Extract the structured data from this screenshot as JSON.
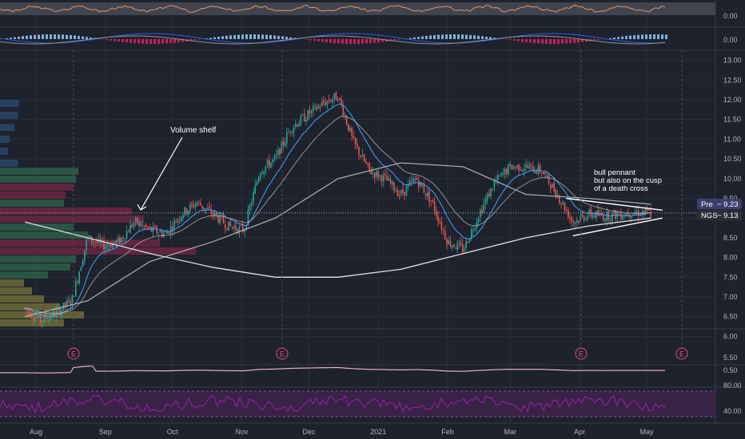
{
  "colors": {
    "background": "#1e222d",
    "grid": "#2a2e39",
    "axis_text": "#b2b5be",
    "up": "#26a69a",
    "down": "#ef5350",
    "sma_slow": "#e0e0e0",
    "sma_fast": "#d1d4dc",
    "ema": "#42a5f5",
    "annotation": "#ffffff",
    "pennant": "#ffffff",
    "earnings": "#e0527a",
    "pre_badge": "#3b3f6e",
    "ngs_badge": "#2a2e39",
    "rsi_line": "#9c27b0",
    "rsi_fill": "#3a2246",
    "bbw_line": "#f8bbd0",
    "osc_line": "#f4a06b",
    "osc_fill": "#4a4e58",
    "macd_line": "#2962ff",
    "signal_line": "#ff9800",
    "vp_up": "#2f6b4f",
    "vp_down": "#7a2746",
    "vp_mid": "#7c7a3c",
    "vp_blue": "#2b4f7a"
  },
  "annotations": {
    "volume_shelf": "Volume shelf",
    "pennant_line1": "bull pennant",
    "pennant_line2": "but also on the cusp",
    "pennant_line3": "of a death cross"
  },
  "earnings_marker": "E",
  "price_badges": [
    {
      "label": "Pre",
      "value": "9.23"
    },
    {
      "label": "NGS",
      "value": "9.13"
    }
  ],
  "chart_data": {
    "type": "candlestick",
    "symbol": "NGS",
    "x_ticks": [
      "Aug",
      "Sep",
      "Oct",
      "Nov",
      "Dec",
      "2021",
      "Feb",
      "Mar",
      "Apr",
      "May"
    ],
    "y_ticks": [
      "13.00",
      "12.50",
      "12.00",
      "11.50",
      "11.00",
      "10.50",
      "10.00",
      "9.50",
      "9.00",
      "8.50",
      "8.00",
      "7.50",
      "7.00",
      "6.50",
      "6.00"
    ],
    "ylim": [
      6.0,
      13.0
    ],
    "earnings_dates": [
      "Aug 24",
      "Nov 6",
      "Mar 26",
      "May 6"
    ],
    "price_path": [
      [
        "Jul 27",
        6.7
      ],
      [
        "Aug 3",
        6.4
      ],
      [
        "Aug 10",
        6.6
      ],
      [
        "Aug 17",
        6.9
      ],
      [
        "Aug 24",
        8.5
      ],
      [
        "Aug 31",
        8.3
      ],
      [
        "Sep 7",
        8.4
      ],
      [
        "Sep 14",
        8.9
      ],
      [
        "Sep 21",
        8.7
      ],
      [
        "Sep 28",
        8.6
      ],
      [
        "Oct 5",
        9.1
      ],
      [
        "Oct 12",
        9.4
      ],
      [
        "Oct 19",
        9.1
      ],
      [
        "Oct 26",
        8.8
      ],
      [
        "Nov 2",
        8.7
      ],
      [
        "Nov 9",
        10.2
      ],
      [
        "Nov 16",
        10.5
      ],
      [
        "Nov 23",
        11.3
      ],
      [
        "Nov 30",
        11.6
      ],
      [
        "Dec 7",
        11.9
      ],
      [
        "Dec 14",
        12.1
      ],
      [
        "Dec 21",
        10.9
      ],
      [
        "Dec 28",
        10.2
      ],
      [
        "Jan 4",
        10.0
      ],
      [
        "Jan 11",
        9.6
      ],
      [
        "Jan 18",
        10.0
      ],
      [
        "Jan 25",
        9.4
      ],
      [
        "Feb 1",
        8.4
      ],
      [
        "Feb 8",
        8.2
      ],
      [
        "Feb 15",
        9.1
      ],
      [
        "Feb 22",
        9.9
      ],
      [
        "Mar 1",
        10.3
      ],
      [
        "Mar 8",
        10.3
      ],
      [
        "Mar 15",
        10.2
      ],
      [
        "Mar 22",
        9.6
      ],
      [
        "Mar 29",
        8.9
      ],
      [
        "Apr 5",
        9.1
      ],
      [
        "Apr 12",
        9.05
      ],
      [
        "Apr 19",
        9.1
      ],
      [
        "Apr 26",
        9.15
      ],
      [
        "May 3",
        9.13
      ]
    ],
    "sma_slow_path": [
      [
        "Jul 27",
        8.9
      ],
      [
        "Aug 24",
        8.5
      ],
      [
        "Sep 21",
        8.1
      ],
      [
        "Oct 19",
        7.75
      ],
      [
        "Nov 16",
        7.5
      ],
      [
        "Dec 14",
        7.5
      ],
      [
        "Jan 11",
        7.7
      ],
      [
        "Feb 8",
        8.1
      ],
      [
        "Mar 8",
        8.5
      ],
      [
        "Apr 5",
        8.8
      ],
      [
        "May 3",
        9.0
      ]
    ],
    "sma_mid_path": [
      [
        "Jul 27",
        6.5
      ],
      [
        "Aug 24",
        6.9
      ],
      [
        "Sep 21",
        7.9
      ],
      [
        "Oct 19",
        8.4
      ],
      [
        "Nov 16",
        9.0
      ],
      [
        "Dec 14",
        10.0
      ],
      [
        "Jan 11",
        10.4
      ],
      [
        "Feb 8",
        10.3
      ],
      [
        "Mar 8",
        9.6
      ],
      [
        "Apr 5",
        9.5
      ],
      [
        "May 3",
        9.35
      ]
    ],
    "pennant_upper": [
      [
        "Mar 26",
        9.5
      ],
      [
        "May 8",
        9.2
      ]
    ],
    "pennant_lower": [
      [
        "Mar 29",
        8.55
      ],
      [
        "May 8",
        9.0
      ]
    ],
    "last_price": 9.13,
    "pre_price": 9.23,
    "sub_panels": {
      "oscillator_ticks": [
        "0.00"
      ],
      "macd_ticks": [
        "0.00"
      ],
      "bbw_ticks": [
        "5.50",
        "0.50"
      ],
      "rsi_ticks": [
        "80.00",
        "40.00"
      ]
    }
  }
}
